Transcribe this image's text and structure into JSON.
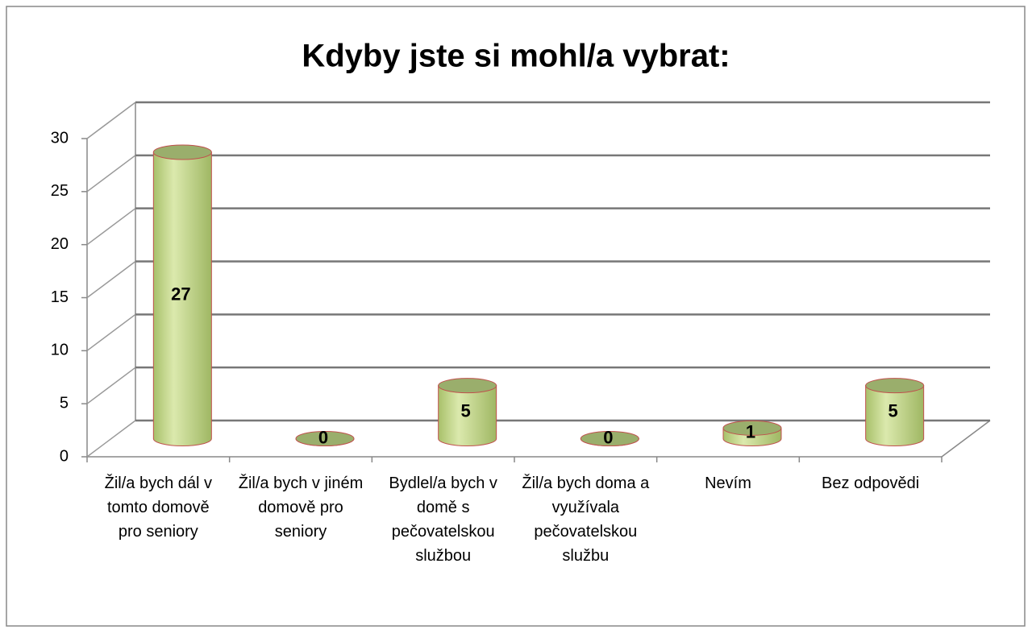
{
  "chart_data": {
    "type": "bar3d",
    "title": "Kdyby jste si mohl/a vybrat:",
    "categories": [
      "Žil/a bych dál v tomto domově pro seniory",
      "Žil/a bych v jiném domově pro seniory",
      "Bydlel/a bych v domě s pečovatelskou službou",
      "Žil/a bych doma a využívala pečovatelskou službu",
      "Nevím",
      "Bez odpovědi"
    ],
    "values": [
      27,
      0,
      5,
      0,
      1,
      5
    ],
    "color": "#c4d98a",
    "ylim": [
      0,
      30
    ],
    "yticks": [
      0,
      5,
      10,
      15,
      20,
      25,
      30
    ],
    "grid": true
  }
}
